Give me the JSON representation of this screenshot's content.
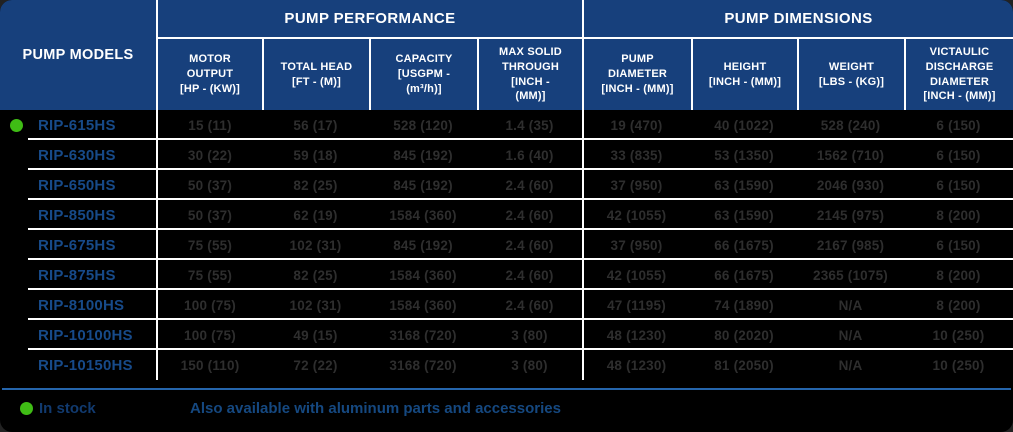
{
  "colors": {
    "header_bg": "#17407C",
    "row_bg": "#000000",
    "divider": "#FFFFFF",
    "model_text": "#174A89",
    "value_text": "#2E2E2E",
    "footer_line": "#2565AC",
    "stock_green": "#3FBC15",
    "in_stock_text": "#113A6F",
    "note_text": "#154880"
  },
  "table": {
    "models_header": "PUMP MODELS",
    "groups": [
      {
        "label": "PUMP PERFORMANCE",
        "columns": [
          "MOTOR\nOUTPUT\n[HP - (KW)]",
          "TOTAL HEAD\n[FT - (M)]",
          "CAPACITY\n[USGPM -\n(m³/h)]",
          "MAX SOLID\nTHROUGH\n[INCH -\n(MM)]"
        ]
      },
      {
        "label": "PUMP DIMENSIONS",
        "columns": [
          "PUMP\nDIAMETER\n[INCH - (MM)]",
          "HEIGHT\n[INCH - (MM)]",
          "WEIGHT\n[LBS - (KG)]",
          "VICTAULIC\nDISCHARGE\nDIAMETER\n[INCH - (MM)]"
        ]
      }
    ],
    "rows": [
      {
        "model": "RIP-615HS",
        "in_stock": true,
        "values": [
          "15 (11)",
          "56 (17)",
          "528 (120)",
          "1.4 (35)",
          "19 (470)",
          "40 (1022)",
          "528 (240)",
          "6 (150)"
        ]
      },
      {
        "model": "RIP-630HS",
        "in_stock": false,
        "values": [
          "30 (22)",
          "59 (18)",
          "845 (192)",
          "1.6 (40)",
          "33 (835)",
          "53 (1350)",
          "1562 (710)",
          "6 (150)"
        ]
      },
      {
        "model": "RIP-650HS",
        "in_stock": false,
        "values": [
          "50 (37)",
          "82 (25)",
          "845 (192)",
          "2.4 (60)",
          "37 (950)",
          "63 (1590)",
          "2046 (930)",
          "6 (150)"
        ]
      },
      {
        "model": "RIP-850HS",
        "in_stock": false,
        "values": [
          "50 (37)",
          "62 (19)",
          "1584 (360)",
          "2.4 (60)",
          "42 (1055)",
          "63 (1590)",
          "2145 (975)",
          "8 (200)"
        ]
      },
      {
        "model": "RIP-675HS",
        "in_stock": false,
        "values": [
          "75 (55)",
          "102 (31)",
          "845 (192)",
          "2.4 (60)",
          "37 (950)",
          "66 (1675)",
          "2167 (985)",
          "6 (150)"
        ]
      },
      {
        "model": "RIP-875HS",
        "in_stock": false,
        "values": [
          "75 (55)",
          "82 (25)",
          "1584 (360)",
          "2.4 (60)",
          "42 (1055)",
          "66 (1675)",
          "2365 (1075)",
          "8 (200)"
        ]
      },
      {
        "model": "RIP-8100HS",
        "in_stock": false,
        "values": [
          "100 (75)",
          "102 (31)",
          "1584 (360)",
          "2.4 (60)",
          "47 (1195)",
          "74 (1890)",
          "N/A",
          "8 (200)"
        ]
      },
      {
        "model": "RIP-10100HS",
        "in_stock": false,
        "values": [
          "100 (75)",
          "49 (15)",
          "3168 (720)",
          "3 (80)",
          "48 (1230)",
          "80 (2020)",
          "N/A",
          "10 (250)"
        ]
      },
      {
        "model": "RIP-10150HS",
        "in_stock": false,
        "values": [
          "150 (110)",
          "72 (22)",
          "3168 (720)",
          "3 (80)",
          "48 (1230)",
          "81 (2050)",
          "N/A",
          "10 (250)"
        ]
      }
    ]
  },
  "legend": {
    "in_stock_label": "In stock",
    "note": "Also available with aluminum parts and accessories"
  }
}
